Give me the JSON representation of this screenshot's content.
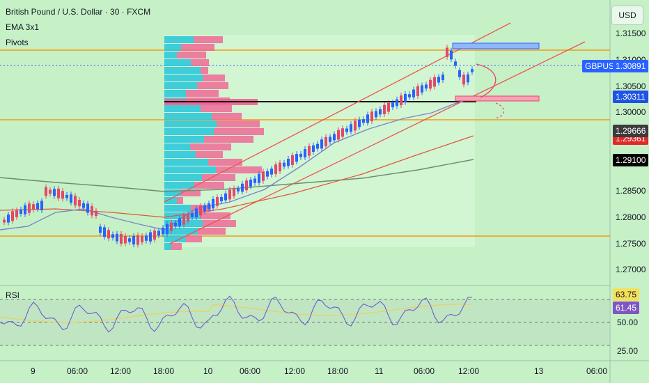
{
  "header": {
    "title": "British Pound / U.S. Dollar · 30 · FXCM",
    "indicator1": "EMA 3x1",
    "indicator2": "Pivots"
  },
  "currency_button": "USD",
  "price_axis": {
    "ticks": [
      "1.31500",
      "1.31000",
      "1.30500",
      "1.30000",
      "1.28500",
      "1.28000",
      "1.27500",
      "1.27000"
    ],
    "symbol_tag": "GBPUSD",
    "last_price": "1.30891",
    "level_blue": "1.30311",
    "level_dark": "1.29666",
    "level_red_hidden": "1.29361",
    "level_black": "1.29100"
  },
  "rsi": {
    "label": "RSI",
    "value_yellow": "63.75",
    "value_purple": "61.45",
    "ticks": [
      "50.00",
      "25.00"
    ]
  },
  "time_axis": {
    "ticks": [
      "9",
      "06:00",
      "12:00",
      "18:00",
      "10",
      "06:00",
      "12:00",
      "18:00",
      "11",
      "06:00",
      "12:00",
      "13",
      "06:00"
    ]
  },
  "colors": {
    "background": "#c6f0c6",
    "bull": "#2962ff",
    "bear": "#e5476b",
    "pivot": "#f39c12",
    "vp_up": "#26c6da",
    "vp_down": "#f06292",
    "channel": "#ef5350",
    "ema_blue": "#7986cb",
    "ma_green": "#6d8b6d"
  }
}
